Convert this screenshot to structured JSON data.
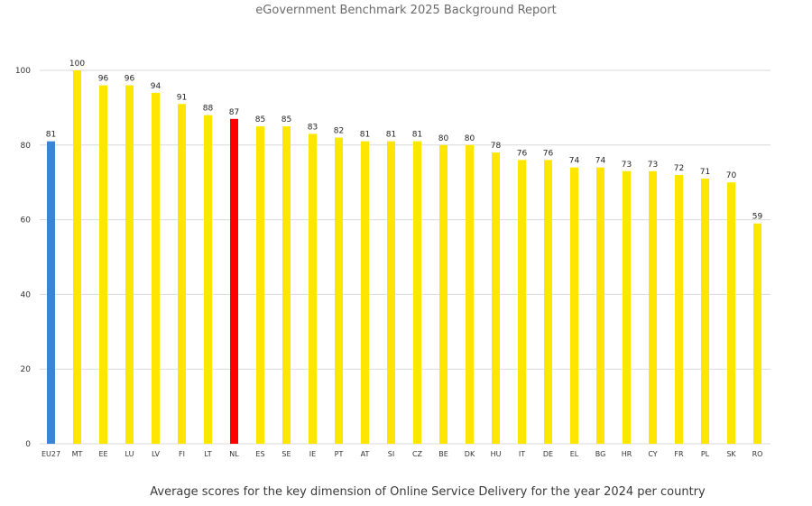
{
  "header": {
    "title": "eGovernment Benchmark 2025 Background Report"
  },
  "caption": {
    "text": "Average scores for the key dimension of Online Service Delivery for the year 2024 per country"
  },
  "colors": {
    "eu_average": "#3c84d6",
    "highlight": "#ff0000",
    "default": "#ffe600"
  },
  "chart_data": {
    "type": "bar",
    "title": "",
    "xlabel": "",
    "ylabel": "",
    "ylim": [
      0,
      100
    ],
    "yticks": [
      0,
      20,
      40,
      60,
      80,
      100
    ],
    "grid": true,
    "legend": "none",
    "categories": [
      "EU27",
      "MT",
      "EE",
      "LU",
      "LV",
      "FI",
      "LT",
      "NL",
      "ES",
      "SE",
      "IE",
      "PT",
      "AT",
      "SI",
      "CZ",
      "BE",
      "DK",
      "HU",
      "IT",
      "DE",
      "EL",
      "BG",
      "HR",
      "CY",
      "FR",
      "PL",
      "SK",
      "RO"
    ],
    "values": [
      81,
      100,
      96,
      96,
      94,
      91,
      88,
      87,
      85,
      85,
      83,
      82,
      81,
      81,
      81,
      80,
      80,
      78,
      76,
      76,
      74,
      74,
      73,
      73,
      72,
      71,
      70,
      59
    ],
    "bar_colors": [
      "eu_average",
      "default",
      "default",
      "default",
      "default",
      "default",
      "default",
      "highlight",
      "default",
      "default",
      "default",
      "default",
      "default",
      "default",
      "default",
      "default",
      "default",
      "default",
      "default",
      "default",
      "default",
      "default",
      "default",
      "default",
      "default",
      "default",
      "default",
      "default"
    ]
  }
}
